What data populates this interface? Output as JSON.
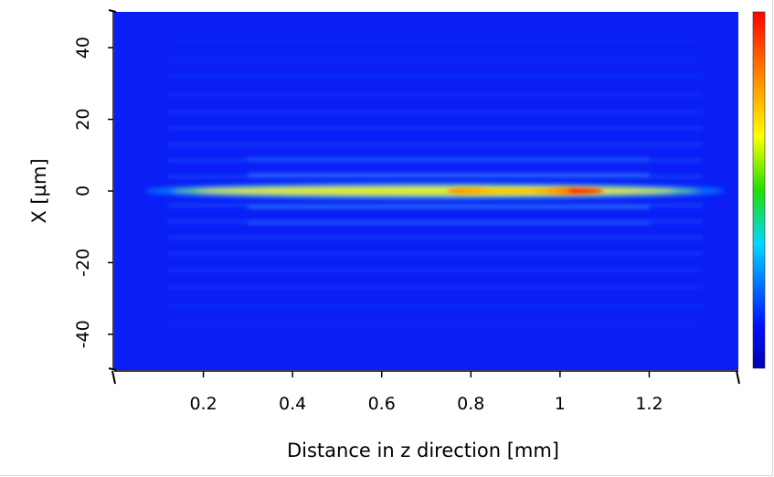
{
  "chart_data": {
    "type": "heatmap",
    "title": "",
    "xlabel": "Distance in z direction [mm]",
    "ylabel": "X [µm]",
    "xlim": [
      0.0,
      1.4
    ],
    "ylim": [
      -50,
      50
    ],
    "x_ticks": [
      0.2,
      0.4,
      0.6,
      0.8,
      1.0,
      1.2
    ],
    "x_tick_labels": [
      "0.2",
      "0.4",
      "0.6",
      "0.8",
      "1",
      "1.2"
    ],
    "y_ticks": [
      40,
      20,
      0,
      -20,
      -40
    ],
    "y_tick_labels": [
      "40",
      "20",
      "0",
      "-20",
      "-40"
    ],
    "colormap": "jet",
    "colorbar": true,
    "grid": false,
    "description": "Focused beam along z; intensity maximum near z ≈ 1.0 mm, x = 0 µm, secondary maximum near z ≈ 0.8 mm; weak horizontal side-lobe fringes across x.",
    "intensity_peaks": [
      {
        "z": 0.8,
        "x": 0,
        "level": 0.85
      },
      {
        "z": 1.02,
        "x": 0,
        "level": 1.0
      }
    ]
  }
}
